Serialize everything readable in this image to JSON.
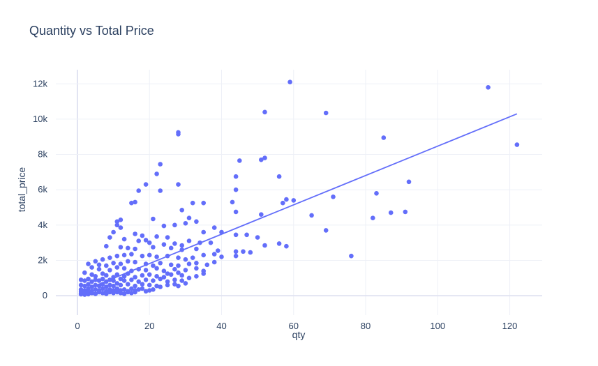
{
  "chart_data": {
    "type": "scatter",
    "title": "Quantity vs Total Price",
    "xlabel": "qty",
    "ylabel": "total_price",
    "xlim": [
      -6,
      129
    ],
    "ylim": [
      -1100,
      12800
    ],
    "x_ticks": [
      0,
      20,
      40,
      60,
      80,
      100,
      120
    ],
    "x_tick_labels": [
      "0",
      "20",
      "40",
      "60",
      "80",
      "100",
      "120"
    ],
    "y_ticks": [
      0,
      2000,
      4000,
      6000,
      8000,
      10000,
      12000
    ],
    "y_tick_labels": [
      "0",
      "2k",
      "4k",
      "6k",
      "8k",
      "10k",
      "12k"
    ],
    "grid": true,
    "point_color": "#636efa",
    "line_color": "#636efa",
    "trendline": {
      "x": [
        1,
        122
      ],
      "y": [
        240,
        10300
      ]
    },
    "points": [
      [
        59,
        12100
      ],
      [
        114,
        11800
      ],
      [
        52,
        10400
      ],
      [
        69,
        10350
      ],
      [
        28,
        9250
      ],
      [
        28,
        9150
      ],
      [
        85,
        8950
      ],
      [
        122,
        8550
      ],
      [
        52,
        7800
      ],
      [
        51,
        7700
      ],
      [
        45,
        7650
      ],
      [
        23,
        7450
      ],
      [
        22,
        6900
      ],
      [
        44,
        6750
      ],
      [
        56,
        6750
      ],
      [
        92,
        6450
      ],
      [
        28,
        6300
      ],
      [
        19,
        6300
      ],
      [
        44,
        6000
      ],
      [
        23,
        5950
      ],
      [
        17,
        5950
      ],
      [
        83,
        5800
      ],
      [
        71,
        5600
      ],
      [
        58,
        5450
      ],
      [
        60,
        5400
      ],
      [
        57,
        5250
      ],
      [
        35,
        5250
      ],
      [
        32,
        5250
      ],
      [
        43,
        5300
      ],
      [
        15,
        5250
      ],
      [
        16,
        5300
      ],
      [
        29,
        4850
      ],
      [
        51,
        4600
      ],
      [
        65,
        4550
      ],
      [
        44,
        4750
      ],
      [
        87,
        4700
      ],
      [
        91,
        4750
      ],
      [
        82,
        4400
      ],
      [
        12,
        4300
      ],
      [
        31,
        4400
      ],
      [
        21,
        4350
      ],
      [
        11,
        4200
      ],
      [
        11,
        4000
      ],
      [
        33,
        4200
      ],
      [
        30,
        4100
      ],
      [
        27,
        4000
      ],
      [
        24,
        3950
      ],
      [
        12,
        3850
      ],
      [
        38,
        3850
      ],
      [
        69,
        3700
      ],
      [
        10,
        3600
      ],
      [
        35,
        3600
      ],
      [
        40,
        3600
      ],
      [
        44,
        3450
      ],
      [
        47,
        3450
      ],
      [
        50,
        3300
      ],
      [
        16,
        3500
      ],
      [
        18,
        3400
      ],
      [
        22,
        3350
      ],
      [
        25,
        3300
      ],
      [
        9,
        3300
      ],
      [
        13,
        3200
      ],
      [
        19,
        3150
      ],
      [
        31,
        3100
      ],
      [
        34,
        3000
      ],
      [
        37,
        3000
      ],
      [
        17,
        3100
      ],
      [
        20,
        3000
      ],
      [
        24,
        2900
      ],
      [
        27,
        2950
      ],
      [
        29,
        2850
      ],
      [
        8,
        2800
      ],
      [
        12,
        2750
      ],
      [
        14,
        2700
      ],
      [
        16,
        2650
      ],
      [
        21,
        2750
      ],
      [
        26,
        2700
      ],
      [
        29,
        2600
      ],
      [
        33,
        2650
      ],
      [
        39,
        2550
      ],
      [
        44,
        2500
      ],
      [
        46,
        2500
      ],
      [
        48,
        2450
      ],
      [
        52,
        2850
      ],
      [
        56,
        2950
      ],
      [
        58,
        2800
      ],
      [
        76,
        2250
      ],
      [
        44,
        2250
      ],
      [
        40,
        2200
      ],
      [
        38,
        2350
      ],
      [
        35,
        2300
      ],
      [
        32,
        2150
      ],
      [
        30,
        2050
      ],
      [
        28,
        2150
      ],
      [
        25,
        2250
      ],
      [
        22,
        2200
      ],
      [
        20,
        2300
      ],
      [
        18,
        2250
      ],
      [
        15,
        2350
      ],
      [
        13,
        2300
      ],
      [
        11,
        2250
      ],
      [
        9,
        2150
      ],
      [
        7,
        2050
      ],
      [
        5,
        1950
      ],
      [
        3,
        1800
      ],
      [
        6,
        1750
      ],
      [
        8,
        1700
      ],
      [
        10,
        1850
      ],
      [
        12,
        1800
      ],
      [
        14,
        1950
      ],
      [
        16,
        1900
      ],
      [
        19,
        1800
      ],
      [
        21,
        1700
      ],
      [
        23,
        1850
      ],
      [
        26,
        1750
      ],
      [
        28,
        1700
      ],
      [
        31,
        1800
      ],
      [
        33,
        1850
      ],
      [
        36,
        1750
      ],
      [
        38,
        1900
      ],
      [
        4,
        1600
      ],
      [
        6,
        1500
      ],
      [
        9,
        1450
      ],
      [
        11,
        1600
      ],
      [
        13,
        1550
      ],
      [
        15,
        1400
      ],
      [
        17,
        1500
      ],
      [
        19,
        1450
      ],
      [
        22,
        1550
      ],
      [
        24,
        1400
      ],
      [
        27,
        1500
      ],
      [
        30,
        1450
      ],
      [
        33,
        1550
      ],
      [
        35,
        1400
      ],
      [
        28,
        1300
      ],
      [
        25,
        1250
      ],
      [
        2,
        1300
      ],
      [
        4,
        1200
      ],
      [
        5,
        1100
      ],
      [
        7,
        1250
      ],
      [
        8,
        1150
      ],
      [
        10,
        1050
      ],
      [
        11,
        1200
      ],
      [
        13,
        1100
      ],
      [
        14,
        1250
      ],
      [
        16,
        1050
      ],
      [
        18,
        1150
      ],
      [
        20,
        1200
      ],
      [
        22,
        1100
      ],
      [
        24,
        1050
      ],
      [
        26,
        1200
      ],
      [
        29,
        1150
      ],
      [
        31,
        1000
      ],
      [
        33,
        1100
      ],
      [
        35,
        1250
      ],
      [
        1,
        900
      ],
      [
        2,
        850
      ],
      [
        3,
        950
      ],
      [
        4,
        800
      ],
      [
        5,
        900
      ],
      [
        6,
        850
      ],
      [
        7,
        950
      ],
      [
        8,
        800
      ],
      [
        9,
        900
      ],
      [
        10,
        850
      ],
      [
        12,
        950
      ],
      [
        13,
        850
      ],
      [
        15,
        900
      ],
      [
        17,
        800
      ],
      [
        19,
        900
      ],
      [
        21,
        850
      ],
      [
        23,
        950
      ],
      [
        25,
        800
      ],
      [
        27,
        900
      ],
      [
        29,
        850
      ],
      [
        30,
        700
      ],
      [
        1,
        600
      ],
      [
        2,
        550
      ],
      [
        3,
        650
      ],
      [
        4,
        500
      ],
      [
        5,
        600
      ],
      [
        6,
        550
      ],
      [
        7,
        650
      ],
      [
        8,
        500
      ],
      [
        9,
        600
      ],
      [
        10,
        550
      ],
      [
        11,
        700
      ],
      [
        12,
        600
      ],
      [
        14,
        650
      ],
      [
        16,
        550
      ],
      [
        18,
        650
      ],
      [
        20,
        600
      ],
      [
        22,
        550
      ],
      [
        23,
        500
      ],
      [
        25,
        600
      ],
      [
        27,
        650
      ],
      [
        28,
        550
      ],
      [
        1,
        350
      ],
      [
        2,
        300
      ],
      [
        3,
        400
      ],
      [
        4,
        250
      ],
      [
        5,
        350
      ],
      [
        6,
        300
      ],
      [
        7,
        400
      ],
      [
        8,
        250
      ],
      [
        9,
        350
      ],
      [
        10,
        300
      ],
      [
        11,
        400
      ],
      [
        12,
        300
      ],
      [
        13,
        350
      ],
      [
        14,
        250
      ],
      [
        15,
        400
      ],
      [
        16,
        300
      ],
      [
        17,
        350
      ],
      [
        18,
        400
      ],
      [
        19,
        250
      ],
      [
        20,
        300
      ],
      [
        21,
        350
      ],
      [
        1,
        150
      ],
      [
        2,
        100
      ],
      [
        3,
        200
      ],
      [
        4,
        150
      ],
      [
        5,
        100
      ],
      [
        6,
        200
      ],
      [
        7,
        150
      ],
      [
        8,
        100
      ],
      [
        9,
        200
      ],
      [
        10,
        150
      ],
      [
        11,
        200
      ],
      [
        12,
        150
      ],
      [
        13,
        100
      ],
      [
        14,
        200
      ],
      [
        15,
        150
      ],
      [
        16,
        200
      ],
      [
        1,
        80
      ],
      [
        2,
        60
      ],
      [
        3,
        90
      ],
      [
        1,
        250
      ],
      [
        2,
        200
      ]
    ]
  }
}
